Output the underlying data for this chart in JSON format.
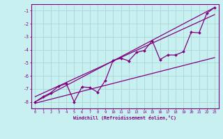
{
  "xlabel": "Windchill (Refroidissement éolien,°C)",
  "bg_color": "#c8f0f0",
  "line_color": "#800080",
  "grid_color": "#a8d8d8",
  "axis_color": "#800080",
  "xlim": [
    -0.5,
    23.5
  ],
  "ylim": [
    -8.5,
    -0.5
  ],
  "yticks": [
    -8,
    -7,
    -6,
    -5,
    -4,
    -3,
    -2,
    -1
  ],
  "xticks": [
    0,
    1,
    2,
    3,
    4,
    5,
    6,
    7,
    8,
    9,
    10,
    11,
    12,
    13,
    14,
    15,
    16,
    17,
    18,
    19,
    20,
    21,
    22,
    23
  ],
  "data_x": [
    0,
    1,
    2,
    3,
    4,
    5,
    6,
    7,
    8,
    9,
    10,
    11,
    12,
    13,
    14,
    15,
    16,
    17,
    18,
    19,
    20,
    21,
    22,
    23
  ],
  "data_y": [
    -8.0,
    -7.6,
    -7.3,
    -6.8,
    -6.6,
    -8.0,
    -6.85,
    -6.9,
    -7.25,
    -6.35,
    -4.8,
    -4.65,
    -4.85,
    -4.2,
    -4.05,
    -3.3,
    -4.75,
    -4.4,
    -4.4,
    -4.15,
    -2.65,
    -2.7,
    -1.2,
    -0.75
  ],
  "line1_x": [
    0,
    23
  ],
  "line1_y": [
    -8.0,
    -0.75
  ],
  "line2_x": [
    0,
    23
  ],
  "line2_y": [
    -7.6,
    -1.3
  ],
  "line3_x": [
    0,
    23
  ],
  "line3_y": [
    -8.1,
    -4.6
  ]
}
